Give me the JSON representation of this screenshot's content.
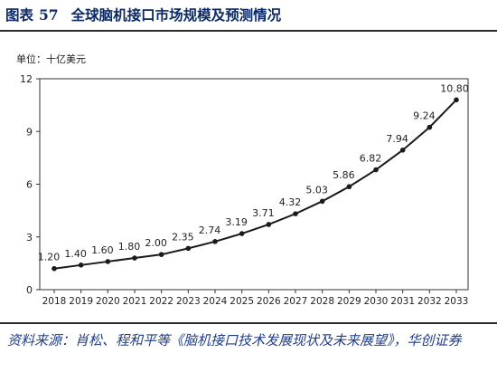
{
  "header": {
    "figure_label": "图表",
    "figure_number": "57",
    "title": "全球脑机接口市场规模及预测情况"
  },
  "unit_label": "单位：十亿美元",
  "source_note": "资料来源：肖松、程和平等《脑机接口技术发展现状及未来展望》，华创证券",
  "colors": {
    "title": "#0b2a66",
    "line": "#1a1a1a",
    "source": "#1f3f85"
  },
  "chart_data": {
    "type": "line",
    "title": "全球脑机接口市场规模及预测情况",
    "xlabel": "",
    "ylabel": "单位：十亿美元",
    "x": [
      "2018",
      "2019",
      "2020",
      "2021",
      "2022",
      "2023",
      "2024",
      "2025",
      "2026",
      "2027",
      "2028",
      "2029",
      "2030",
      "2031",
      "2032",
      "2033"
    ],
    "series": [
      {
        "values": [
          1.2,
          1.4,
          1.6,
          1.8,
          2.0,
          2.35,
          2.74,
          3.19,
          3.71,
          4.32,
          5.03,
          5.86,
          6.82,
          7.94,
          9.24,
          10.8
        ]
      }
    ],
    "data_labels": [
      "1.20",
      "1.40",
      "1.60",
      "1.80",
      "2.00",
      "2.35",
      "2.74",
      "3.19",
      "3.71",
      "4.32",
      "5.03",
      "5.86",
      "6.82",
      "7.94",
      "9.24",
      "10.80"
    ],
    "yticks": [
      "0",
      "3",
      "6",
      "9",
      "12"
    ],
    "ylim": [
      0,
      12
    ],
    "grid": false,
    "legend": "none"
  }
}
